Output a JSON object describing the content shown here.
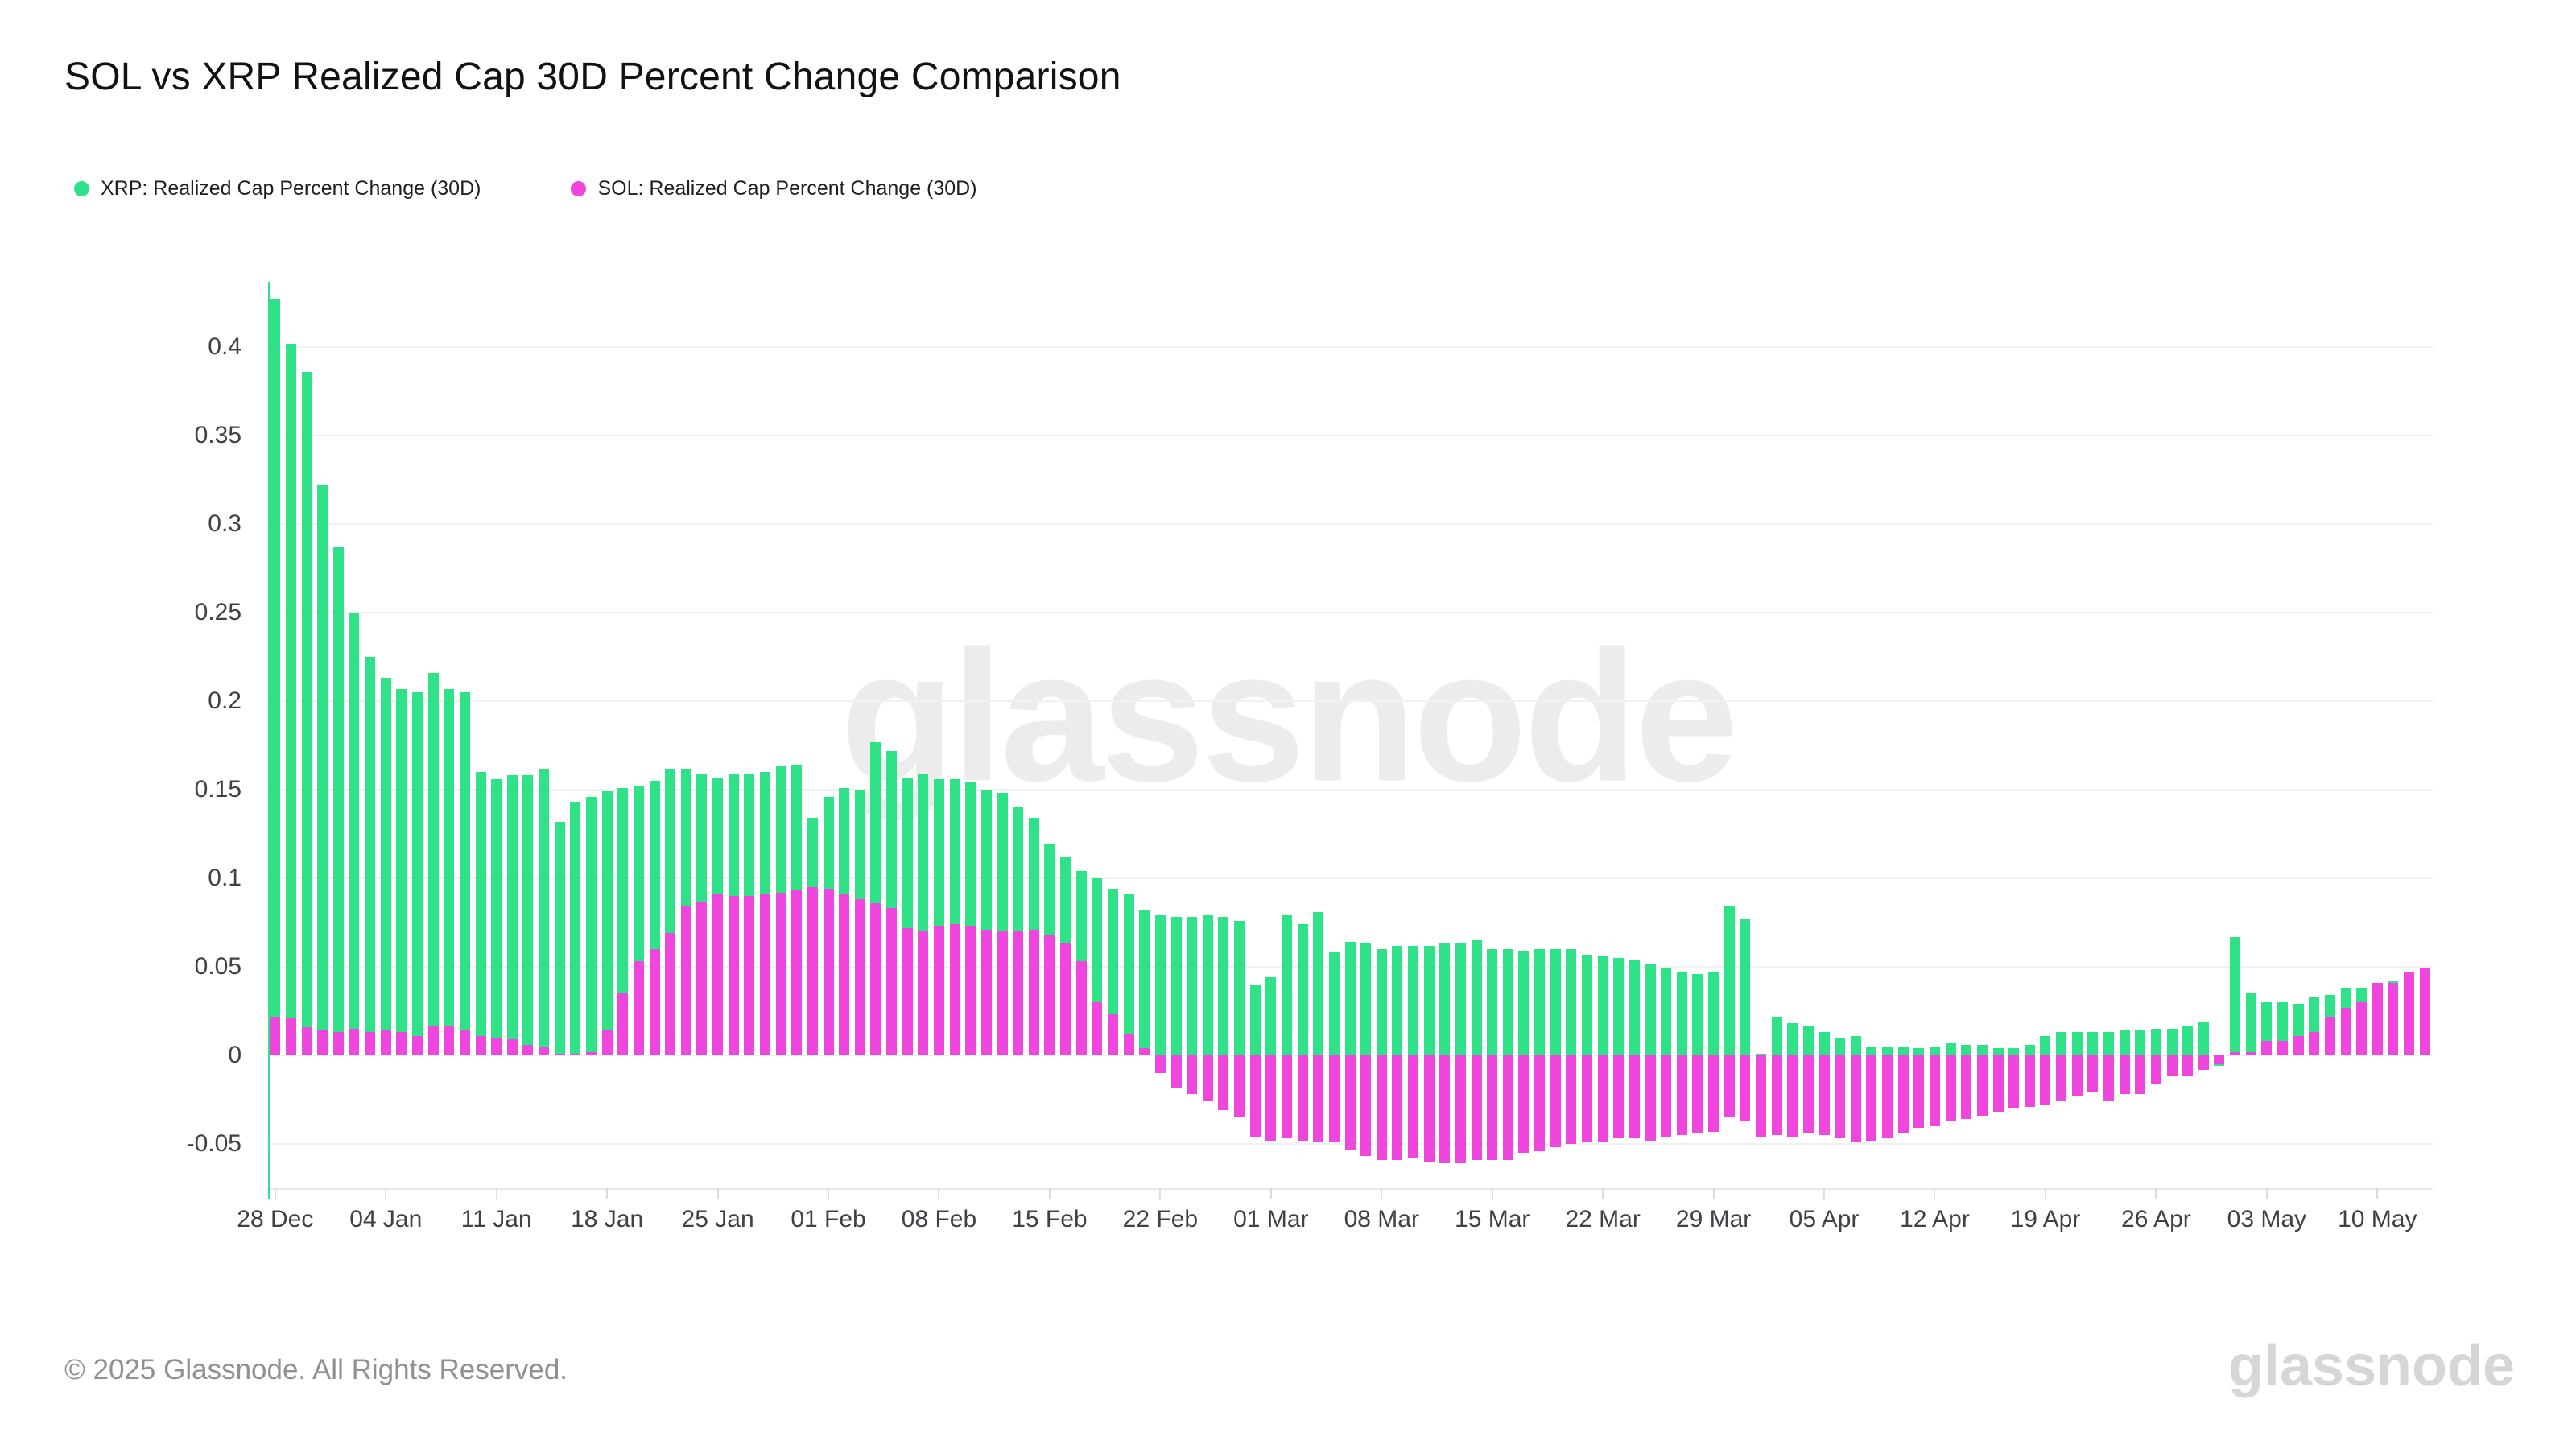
{
  "title": "SOL vs XRP Realized Cap 30D Percent Change Comparison",
  "legend": {
    "items": [
      {
        "label": "XRP: Realized Cap Percent Change (30D)",
        "color": "#2fe288",
        "icon": "legend-dot"
      },
      {
        "label": "SOL: Realized Cap Percent Change (30D)",
        "color": "#ef46dd",
        "icon": "legend-dot"
      }
    ]
  },
  "watermark": "glassnode",
  "footer": {
    "copyright": "© 2025 Glassnode. All Rights Reserved.",
    "logo": "glassnode"
  },
  "chart_data": {
    "type": "bar",
    "mode": "overlaid",
    "title": "SOL vs XRP Realized Cap 30D Percent Change Comparison",
    "xlabel": "",
    "ylabel": "",
    "grid": "horizontal",
    "legend_position": "top-left",
    "ylim": [
      -0.075,
      0.437
    ],
    "yticks": {
      "labels": [
        "0.4",
        "0.35",
        "0.3",
        "0.25",
        "0.2",
        "0.15",
        "0.1",
        "0.05",
        "0",
        "-0.05"
      ],
      "values": [
        0.4,
        0.35,
        0.3,
        0.25,
        0.2,
        0.15,
        0.1,
        0.05,
        0,
        -0.05
      ]
    },
    "xticks": {
      "labels": [
        "28 Dec",
        "04 Jan",
        "11 Jan",
        "18 Jan",
        "25 Jan",
        "01 Feb",
        "08 Feb",
        "15 Feb",
        "22 Feb",
        "01 Mar",
        "08 Mar",
        "15 Mar",
        "22 Mar",
        "29 Mar",
        "05 Apr",
        "12 Apr",
        "19 Apr",
        "26 Apr",
        "03 May",
        "10 May"
      ],
      "indices": [
        0,
        7,
        14,
        21,
        28,
        35,
        42,
        49,
        56,
        63,
        70,
        77,
        84,
        91,
        98,
        105,
        112,
        119,
        126,
        133
      ]
    },
    "x": [
      "2024-12-28",
      "2024-12-29",
      "2024-12-30",
      "2024-12-31",
      "2025-01-01",
      "2025-01-02",
      "2025-01-03",
      "2025-01-04",
      "2025-01-05",
      "2025-01-06",
      "2025-01-07",
      "2025-01-08",
      "2025-01-09",
      "2025-01-10",
      "2025-01-11",
      "2025-01-12",
      "2025-01-13",
      "2025-01-14",
      "2025-01-15",
      "2025-01-16",
      "2025-01-17",
      "2025-01-18",
      "2025-01-19",
      "2025-01-20",
      "2025-01-21",
      "2025-01-22",
      "2025-01-23",
      "2025-01-24",
      "2025-01-25",
      "2025-01-26",
      "2025-01-27",
      "2025-01-28",
      "2025-01-29",
      "2025-01-30",
      "2025-01-31",
      "2025-02-01",
      "2025-02-02",
      "2025-02-03",
      "2025-02-04",
      "2025-02-05",
      "2025-02-06",
      "2025-02-07",
      "2025-02-08",
      "2025-02-09",
      "2025-02-10",
      "2025-02-11",
      "2025-02-12",
      "2025-02-13",
      "2025-02-14",
      "2025-02-15",
      "2025-02-16",
      "2025-02-17",
      "2025-02-18",
      "2025-02-19",
      "2025-02-20",
      "2025-02-21",
      "2025-02-22",
      "2025-02-23",
      "2025-02-24",
      "2025-02-25",
      "2025-02-26",
      "2025-02-27",
      "2025-02-28",
      "2025-03-01",
      "2025-03-02",
      "2025-03-03",
      "2025-03-04",
      "2025-03-05",
      "2025-03-06",
      "2025-03-07",
      "2025-03-08",
      "2025-03-09",
      "2025-03-10",
      "2025-03-11",
      "2025-03-12",
      "2025-03-13",
      "2025-03-14",
      "2025-03-15",
      "2025-03-16",
      "2025-03-17",
      "2025-03-18",
      "2025-03-19",
      "2025-03-20",
      "2025-03-21",
      "2025-03-22",
      "2025-03-23",
      "2025-03-24",
      "2025-03-25",
      "2025-03-26",
      "2025-03-27",
      "2025-03-28",
      "2025-03-29",
      "2025-03-30",
      "2025-03-31",
      "2025-04-01",
      "2025-04-02",
      "2025-04-03",
      "2025-04-04",
      "2025-04-05",
      "2025-04-06",
      "2025-04-07",
      "2025-04-08",
      "2025-04-09",
      "2025-04-10",
      "2025-04-11",
      "2025-04-12",
      "2025-04-13",
      "2025-04-14",
      "2025-04-15",
      "2025-04-16",
      "2025-04-17",
      "2025-04-18",
      "2025-04-19",
      "2025-04-20",
      "2025-04-21",
      "2025-04-22",
      "2025-04-23",
      "2025-04-24",
      "2025-04-25",
      "2025-04-26",
      "2025-04-27",
      "2025-04-28",
      "2025-04-29",
      "2025-04-30",
      "2025-05-01",
      "2025-05-02",
      "2025-05-03",
      "2025-05-04",
      "2025-05-05",
      "2025-05-06",
      "2025-05-07",
      "2025-05-08",
      "2025-05-09",
      "2025-05-10",
      "2025-05-11",
      "2025-05-12",
      "2025-05-13"
    ],
    "series": [
      {
        "name": "XRP: Realized Cap Percent Change (30D)",
        "color": "#2fe288",
        "values": [
          0.427,
          0.402,
          0.386,
          0.322,
          0.287,
          0.25,
          0.225,
          0.213,
          0.207,
          0.205,
          0.216,
          0.207,
          0.205,
          0.16,
          0.156,
          0.158,
          0.158,
          0.162,
          0.132,
          0.143,
          0.146,
          0.149,
          0.151,
          0.152,
          0.155,
          0.162,
          0.162,
          0.159,
          0.157,
          0.159,
          0.159,
          0.16,
          0.163,
          0.164,
          0.134,
          0.146,
          0.151,
          0.15,
          0.177,
          0.172,
          0.157,
          0.159,
          0.156,
          0.156,
          0.154,
          0.15,
          0.148,
          0.14,
          0.134,
          0.119,
          0.112,
          0.104,
          0.1,
          0.094,
          0.091,
          0.082,
          0.079,
          0.078,
          0.078,
          0.079,
          0.078,
          0.076,
          0.04,
          0.044,
          0.079,
          0.074,
          0.081,
          0.058,
          0.064,
          0.063,
          0.06,
          0.062,
          0.062,
          0.062,
          0.063,
          0.063,
          0.065,
          0.06,
          0.06,
          0.059,
          0.06,
          0.06,
          0.06,
          0.057,
          0.056,
          0.055,
          0.054,
          0.052,
          0.049,
          0.047,
          0.046,
          0.047,
          0.084,
          0.077,
          0.001,
          0.022,
          0.018,
          0.017,
          0.013,
          0.01,
          0.011,
          0.005,
          0.005,
          0.005,
          0.004,
          0.005,
          0.007,
          0.006,
          0.006,
          0.004,
          0.004,
          0.006,
          0.011,
          0.013,
          0.013,
          0.013,
          0.013,
          0.014,
          0.014,
          0.015,
          0.015,
          0.017,
          0.019,
          -0.006,
          0.067,
          0.035,
          0.03,
          0.03,
          0.029,
          0.033,
          0.034,
          0.038,
          0.038,
          0.039,
          0.042,
          0.044,
          0.045
        ]
      },
      {
        "name": "SOL: Realized Cap Percent Change (30D)",
        "color": "#ef46dd",
        "values": [
          0.022,
          0.021,
          0.016,
          0.014,
          0.013,
          0.015,
          0.013,
          0.014,
          0.013,
          0.011,
          0.017,
          0.017,
          0.014,
          0.011,
          0.01,
          0.009,
          0.006,
          0.005,
          0.001,
          0.001,
          0.002,
          0.014,
          0.035,
          0.053,
          0.06,
          0.069,
          0.084,
          0.087,
          0.091,
          0.09,
          0.09,
          0.091,
          0.092,
          0.093,
          0.095,
          0.094,
          0.091,
          0.088,
          0.086,
          0.083,
          0.072,
          0.07,
          0.073,
          0.074,
          0.073,
          0.071,
          0.07,
          0.07,
          0.071,
          0.068,
          0.063,
          0.053,
          0.03,
          0.023,
          0.012,
          0.004,
          -0.01,
          -0.018,
          -0.022,
          -0.026,
          -0.031,
          -0.035,
          -0.046,
          -0.048,
          -0.047,
          -0.048,
          -0.049,
          -0.049,
          -0.053,
          -0.057,
          -0.059,
          -0.059,
          -0.058,
          -0.06,
          -0.061,
          -0.061,
          -0.059,
          -0.059,
          -0.059,
          -0.055,
          -0.054,
          -0.052,
          -0.05,
          -0.049,
          -0.049,
          -0.047,
          -0.047,
          -0.048,
          -0.046,
          -0.045,
          -0.044,
          -0.043,
          -0.035,
          -0.037,
          -0.046,
          -0.045,
          -0.046,
          -0.044,
          -0.045,
          -0.047,
          -0.049,
          -0.048,
          -0.047,
          -0.044,
          -0.041,
          -0.04,
          -0.037,
          -0.036,
          -0.034,
          -0.032,
          -0.03,
          -0.029,
          -0.028,
          -0.026,
          -0.023,
          -0.021,
          -0.026,
          -0.022,
          -0.022,
          -0.016,
          -0.012,
          -0.012,
          -0.008,
          -0.005,
          0.002,
          0.002,
          0.008,
          0.008,
          0.011,
          0.013,
          0.022,
          0.027,
          0.03,
          0.041,
          0.041,
          0.047,
          0.049
        ]
      }
    ]
  }
}
